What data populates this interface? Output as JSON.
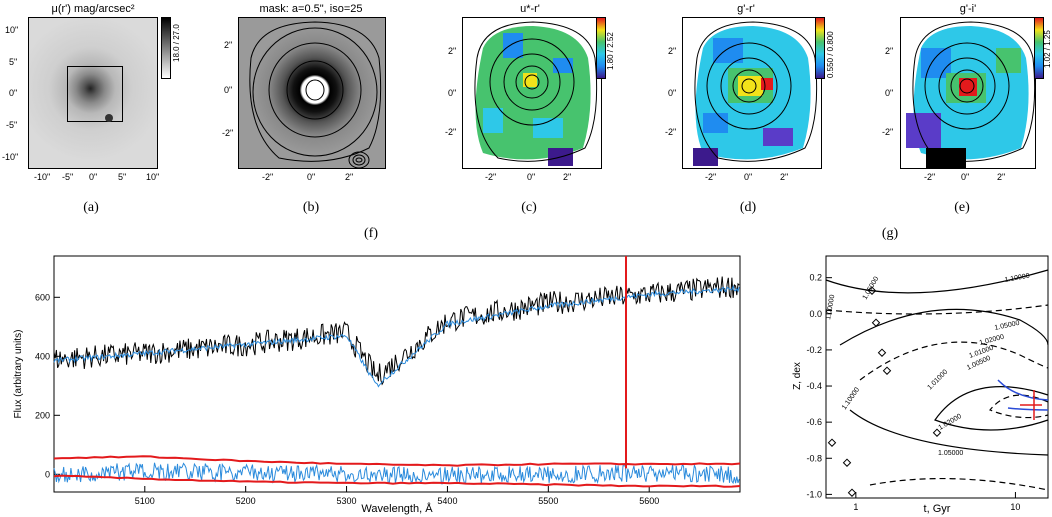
{
  "panels": [
    {
      "id": "a",
      "title": "μ(r') mag/arcsec²",
      "label": "(a)",
      "colorbar": "18.0 / 27.0",
      "xticks": [
        "-10\"",
        "-5\"",
        "0\"",
        "5\"",
        "10\""
      ],
      "yticks": [
        "10\"",
        "5\"",
        "0\"",
        "-5\"",
        "-10\""
      ]
    },
    {
      "id": "b",
      "title": "mask: a=0.5\", iso=25",
      "label": "(b)",
      "sublabel": "(f)",
      "xticks": [
        "-2\"",
        "0\"",
        "2\""
      ],
      "yticks": [
        "2\"",
        "0\"",
        "-2\""
      ]
    },
    {
      "id": "c",
      "title": "u*-r'",
      "label": "(c)",
      "colorbar": "1.80 / 2.52",
      "xticks": [
        "-2\"",
        "0\"",
        "2\""
      ],
      "yticks": [
        "2\"",
        "0\"",
        "-2\""
      ]
    },
    {
      "id": "d",
      "title": "g'-r'",
      "label": "(d)",
      "colorbar": "0.550 / 0.800",
      "xticks": [
        "-2\"",
        "0\"",
        "2\""
      ],
      "yticks": [
        "2\"",
        "0\"",
        "-2\""
      ]
    },
    {
      "id": "e",
      "title": "g'-i'",
      "label": "(e)",
      "sublabel": "(g)",
      "colorbar": "1.02 / 1.25",
      "xticks": [
        "-2\"",
        "0\"",
        "2\""
      ],
      "yticks": [
        "2\"",
        "0\"",
        "-2\""
      ]
    }
  ],
  "spectrum": {
    "xlabel": "Wavelength, Å",
    "ylabel": "Flux (arbitrary units)",
    "xticks": [
      "5100",
      "5200",
      "5300",
      "5400",
      "5500",
      "5600"
    ],
    "yticks": [
      "600",
      "400",
      "200",
      "0"
    ]
  },
  "contour": {
    "xlabel": "t, Gyr",
    "ylabel": "Z, dex",
    "xticks": [
      "1",
      "10"
    ],
    "yticks": [
      "0.2",
      "0.0",
      "-0.2",
      "-0.4",
      "-0.6",
      "-0.8",
      "-1.0"
    ],
    "levels": [
      "1.10000",
      "1.05000",
      "1.02000",
      "1.01000",
      "1.00500",
      "1.00000",
      "1.01000",
      "1.02000",
      "1.05000",
      "1.10000",
      "1.05000"
    ]
  },
  "chart_data": [
    {
      "type": "line",
      "xlabel": "Wavelength, Å",
      "ylabel": "Flux (arbitrary units)",
      "xlim": [
        5010,
        5690
      ],
      "ylim": [
        -60,
        740
      ],
      "series": [
        {
          "name": "",
          "color": "#000000",
          "x": [
            5010,
            5100,
            5200,
            5300,
            5330,
            5400,
            5500,
            5600,
            5690
          ],
          "y": [
            390,
            410,
            440,
            480,
            330,
            520,
            580,
            610,
            640
          ]
        },
        {
          "name": "",
          "color": "#2b8bdc",
          "x": [
            5010,
            5100,
            5200,
            5300,
            5330,
            5400,
            5500,
            5600,
            5690
          ],
          "y": [
            385,
            410,
            440,
            470,
            300,
            510,
            570,
            610,
            630
          ]
        },
        {
          "name": "",
          "color": "#2b8bdc",
          "x": [
            5010,
            5100,
            5200,
            5300,
            5400,
            5500,
            5600,
            5690
          ],
          "y": [
            20,
            30,
            25,
            20,
            15,
            20,
            25,
            20
          ]
        },
        {
          "name": "",
          "color": "#e31a1c",
          "x": [
            5010,
            5100,
            5200,
            5300,
            5400,
            5500,
            5600,
            5690
          ],
          "y": [
            55,
            60,
            45,
            35,
            30,
            35,
            35,
            35
          ]
        },
        {
          "name": "",
          "color": "#e31a1c",
          "x": [
            5010,
            5100,
            5200,
            5300,
            5400,
            5500,
            5600,
            5690
          ],
          "y": [
            -5,
            -15,
            -25,
            -30,
            -30,
            -35,
            -40,
            -40
          ]
        }
      ],
      "annotations": [
        {
          "type": "vline",
          "x": 5577,
          "color": "#e31a1c"
        }
      ]
    },
    {
      "type": "line",
      "xlabel": "t, Gyr",
      "ylabel": "Z, dex",
      "xscale": "log",
      "ylim": [
        -1.02,
        0.32
      ],
      "yticks": [
        0.2,
        0.0,
        -0.2,
        -0.4,
        -0.6,
        -0.8,
        -1.0
      ],
      "xticks": [
        1,
        10
      ]
    }
  ]
}
